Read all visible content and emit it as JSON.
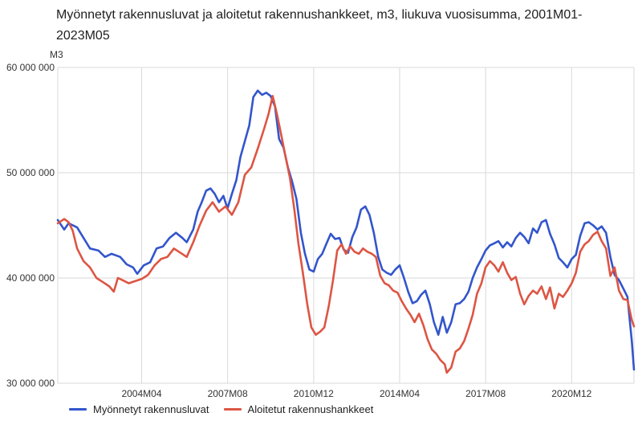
{
  "chart_data": {
    "type": "line",
    "title": "Myönnetyt rakennusluvat ja aloitetut rakennushankkeet, m3, liukuva vuosisumma, 2001M01-2023M05",
    "ylabel": "M3",
    "xlabel": "",
    "ylim": [
      30000000,
      60000000
    ],
    "yticks": [
      30000000,
      40000000,
      50000000,
      60000000
    ],
    "ytick_labels": [
      "30 000 000",
      "40 000 000",
      "50 000 000",
      "60 000 000"
    ],
    "xlim": [
      2001.0,
      2023.333
    ],
    "xticks": [
      2001.0,
      2004.25,
      2007.583,
      2010.917,
      2014.25,
      2017.583,
      2020.917
    ],
    "xtick_labels": [
      "",
      "2004M04",
      "2007M08",
      "2010M12",
      "2014M04",
      "2017M08",
      "2020M12"
    ],
    "grid": true,
    "legend_position": "bottom-left",
    "series": [
      {
        "name": "Myönnetyt rakennusluvat",
        "color": "#3355cc",
        "points": [
          [
            2001.0,
            45.5
          ],
          [
            2001.25,
            44.6
          ],
          [
            2001.42,
            45.2
          ],
          [
            2001.75,
            44.8
          ],
          [
            2002.0,
            43.8
          ],
          [
            2002.25,
            42.8
          ],
          [
            2002.58,
            42.6
          ],
          [
            2002.83,
            42.0
          ],
          [
            2003.08,
            42.3
          ],
          [
            2003.42,
            42.0
          ],
          [
            2003.67,
            41.3
          ],
          [
            2003.92,
            41.0
          ],
          [
            2004.08,
            40.4
          ],
          [
            2004.33,
            41.2
          ],
          [
            2004.58,
            41.5
          ],
          [
            2004.83,
            42.8
          ],
          [
            2005.08,
            43.0
          ],
          [
            2005.33,
            43.8
          ],
          [
            2005.58,
            44.3
          ],
          [
            2005.83,
            43.8
          ],
          [
            2006.0,
            43.4
          ],
          [
            2006.25,
            44.6
          ],
          [
            2006.42,
            46.3
          ],
          [
            2006.58,
            47.2
          ],
          [
            2006.75,
            48.3
          ],
          [
            2006.92,
            48.5
          ],
          [
            2007.08,
            48.0
          ],
          [
            2007.25,
            47.2
          ],
          [
            2007.42,
            47.8
          ],
          [
            2007.58,
            46.6
          ],
          [
            2007.75,
            48.0
          ],
          [
            2007.92,
            49.3
          ],
          [
            2008.08,
            51.5
          ],
          [
            2008.25,
            53.0
          ],
          [
            2008.42,
            54.5
          ],
          [
            2008.58,
            57.2
          ],
          [
            2008.75,
            57.8
          ],
          [
            2008.92,
            57.4
          ],
          [
            2009.08,
            57.6
          ],
          [
            2009.25,
            57.3
          ],
          [
            2009.42,
            56.3
          ],
          [
            2009.58,
            53.2
          ],
          [
            2009.75,
            52.4
          ],
          [
            2009.92,
            50.5
          ],
          [
            2010.08,
            49.2
          ],
          [
            2010.25,
            47.5
          ],
          [
            2010.42,
            44.3
          ],
          [
            2010.58,
            42.3
          ],
          [
            2010.75,
            40.8
          ],
          [
            2010.92,
            40.6
          ],
          [
            2011.08,
            41.8
          ],
          [
            2011.25,
            42.3
          ],
          [
            2011.42,
            43.3
          ],
          [
            2011.58,
            44.2
          ],
          [
            2011.75,
            43.7
          ],
          [
            2011.92,
            43.8
          ],
          [
            2012.08,
            42.7
          ],
          [
            2012.25,
            42.4
          ],
          [
            2012.42,
            43.9
          ],
          [
            2012.58,
            44.8
          ],
          [
            2012.75,
            46.5
          ],
          [
            2012.92,
            46.8
          ],
          [
            2013.08,
            46.0
          ],
          [
            2013.25,
            44.3
          ],
          [
            2013.42,
            42.0
          ],
          [
            2013.58,
            40.8
          ],
          [
            2013.75,
            40.5
          ],
          [
            2013.92,
            40.3
          ],
          [
            2014.08,
            40.8
          ],
          [
            2014.25,
            41.2
          ],
          [
            2014.42,
            40.0
          ],
          [
            2014.58,
            38.7
          ],
          [
            2014.75,
            37.6
          ],
          [
            2014.92,
            37.8
          ],
          [
            2015.08,
            38.4
          ],
          [
            2015.25,
            38.8
          ],
          [
            2015.42,
            37.5
          ],
          [
            2015.58,
            35.8
          ],
          [
            2015.75,
            34.6
          ],
          [
            2015.92,
            36.3
          ],
          [
            2016.08,
            34.8
          ],
          [
            2016.25,
            35.8
          ],
          [
            2016.42,
            37.5
          ],
          [
            2016.58,
            37.6
          ],
          [
            2016.75,
            38.0
          ],
          [
            2016.92,
            38.7
          ],
          [
            2017.08,
            40.0
          ],
          [
            2017.25,
            41.0
          ],
          [
            2017.42,
            41.8
          ],
          [
            2017.58,
            42.6
          ],
          [
            2017.75,
            43.1
          ],
          [
            2017.92,
            43.3
          ],
          [
            2018.08,
            43.5
          ],
          [
            2018.25,
            42.9
          ],
          [
            2018.42,
            43.4
          ],
          [
            2018.58,
            43.0
          ],
          [
            2018.75,
            43.8
          ],
          [
            2018.92,
            44.3
          ],
          [
            2019.08,
            43.9
          ],
          [
            2019.25,
            43.3
          ],
          [
            2019.42,
            44.7
          ],
          [
            2019.58,
            44.3
          ],
          [
            2019.75,
            45.3
          ],
          [
            2019.92,
            45.5
          ],
          [
            2020.08,
            44.2
          ],
          [
            2020.25,
            43.2
          ],
          [
            2020.42,
            41.9
          ],
          [
            2020.58,
            41.5
          ],
          [
            2020.75,
            41.0
          ],
          [
            2020.92,
            41.8
          ],
          [
            2021.08,
            42.2
          ],
          [
            2021.25,
            44.0
          ],
          [
            2021.42,
            45.2
          ],
          [
            2021.58,
            45.3
          ],
          [
            2021.75,
            45.0
          ],
          [
            2021.92,
            44.6
          ],
          [
            2022.08,
            44.9
          ],
          [
            2022.25,
            44.3
          ],
          [
            2022.42,
            42.0
          ],
          [
            2022.58,
            40.3
          ],
          [
            2022.75,
            39.8
          ],
          [
            2022.92,
            39.0
          ],
          [
            2023.08,
            38.2
          ],
          [
            2023.25,
            34.0
          ],
          [
            2023.333,
            31.3
          ]
        ]
      },
      {
        "name": "Aloitetut rakennushankkeet",
        "color": "#dd5544",
        "points": [
          [
            2001.0,
            45.2
          ],
          [
            2001.25,
            45.6
          ],
          [
            2001.42,
            45.3
          ],
          [
            2001.58,
            44.5
          ],
          [
            2001.75,
            42.8
          ],
          [
            2002.0,
            41.6
          ],
          [
            2002.25,
            41.0
          ],
          [
            2002.5,
            40.0
          ],
          [
            2002.75,
            39.6
          ],
          [
            2003.0,
            39.2
          ],
          [
            2003.17,
            38.7
          ],
          [
            2003.33,
            40.0
          ],
          [
            2003.5,
            39.8
          ],
          [
            2003.75,
            39.5
          ],
          [
            2004.0,
            39.7
          ],
          [
            2004.25,
            39.9
          ],
          [
            2004.5,
            40.3
          ],
          [
            2004.75,
            41.2
          ],
          [
            2005.0,
            41.8
          ],
          [
            2005.25,
            42.0
          ],
          [
            2005.5,
            42.8
          ],
          [
            2005.75,
            42.4
          ],
          [
            2006.0,
            42.0
          ],
          [
            2006.25,
            43.4
          ],
          [
            2006.5,
            45.0
          ],
          [
            2006.75,
            46.4
          ],
          [
            2007.0,
            47.2
          ],
          [
            2007.25,
            46.3
          ],
          [
            2007.5,
            46.8
          ],
          [
            2007.75,
            46.0
          ],
          [
            2008.0,
            47.2
          ],
          [
            2008.25,
            49.8
          ],
          [
            2008.5,
            50.5
          ],
          [
            2008.75,
            52.3
          ],
          [
            2009.0,
            54.2
          ],
          [
            2009.17,
            55.6
          ],
          [
            2009.33,
            57.3
          ],
          [
            2009.5,
            55.5
          ],
          [
            2009.67,
            53.5
          ],
          [
            2009.83,
            51.5
          ],
          [
            2010.0,
            49.5
          ],
          [
            2010.17,
            46.5
          ],
          [
            2010.33,
            43.2
          ],
          [
            2010.5,
            40.5
          ],
          [
            2010.67,
            37.5
          ],
          [
            2010.83,
            35.3
          ],
          [
            2011.0,
            34.6
          ],
          [
            2011.17,
            34.9
          ],
          [
            2011.33,
            35.3
          ],
          [
            2011.5,
            37.3
          ],
          [
            2011.67,
            39.8
          ],
          [
            2011.83,
            42.6
          ],
          [
            2012.0,
            43.2
          ],
          [
            2012.17,
            42.3
          ],
          [
            2012.33,
            43.0
          ],
          [
            2012.5,
            42.5
          ],
          [
            2012.67,
            42.3
          ],
          [
            2012.83,
            42.8
          ],
          [
            2013.0,
            42.5
          ],
          [
            2013.17,
            42.3
          ],
          [
            2013.33,
            42.0
          ],
          [
            2013.5,
            40.2
          ],
          [
            2013.67,
            39.5
          ],
          [
            2013.83,
            39.3
          ],
          [
            2014.0,
            38.8
          ],
          [
            2014.17,
            38.6
          ],
          [
            2014.33,
            37.8
          ],
          [
            2014.5,
            37.1
          ],
          [
            2014.67,
            36.5
          ],
          [
            2014.83,
            35.8
          ],
          [
            2015.0,
            36.6
          ],
          [
            2015.17,
            35.5
          ],
          [
            2015.33,
            34.2
          ],
          [
            2015.5,
            33.2
          ],
          [
            2015.67,
            32.8
          ],
          [
            2015.83,
            32.2
          ],
          [
            2016.0,
            31.8
          ],
          [
            2016.08,
            31.0
          ],
          [
            2016.25,
            31.5
          ],
          [
            2016.42,
            33.0
          ],
          [
            2016.58,
            33.3
          ],
          [
            2016.75,
            34.0
          ],
          [
            2016.92,
            35.2
          ],
          [
            2017.08,
            36.5
          ],
          [
            2017.25,
            38.5
          ],
          [
            2017.42,
            39.5
          ],
          [
            2017.58,
            41.0
          ],
          [
            2017.75,
            41.6
          ],
          [
            2017.92,
            41.2
          ],
          [
            2018.08,
            40.6
          ],
          [
            2018.25,
            41.5
          ],
          [
            2018.42,
            40.5
          ],
          [
            2018.58,
            39.8
          ],
          [
            2018.75,
            40.1
          ],
          [
            2018.92,
            38.5
          ],
          [
            2019.08,
            37.5
          ],
          [
            2019.25,
            38.3
          ],
          [
            2019.42,
            38.8
          ],
          [
            2019.58,
            38.5
          ],
          [
            2019.75,
            39.2
          ],
          [
            2019.92,
            38.0
          ],
          [
            2020.08,
            39.1
          ],
          [
            2020.25,
            37.1
          ],
          [
            2020.42,
            38.5
          ],
          [
            2020.58,
            38.2
          ],
          [
            2020.75,
            38.8
          ],
          [
            2020.92,
            39.5
          ],
          [
            2021.08,
            40.5
          ],
          [
            2021.25,
            42.5
          ],
          [
            2021.42,
            43.2
          ],
          [
            2021.58,
            43.5
          ],
          [
            2021.75,
            44.1
          ],
          [
            2021.92,
            44.4
          ],
          [
            2022.08,
            43.5
          ],
          [
            2022.25,
            42.8
          ],
          [
            2022.42,
            40.2
          ],
          [
            2022.58,
            41.0
          ],
          [
            2022.75,
            38.8
          ],
          [
            2022.92,
            38.0
          ],
          [
            2023.08,
            37.9
          ],
          [
            2023.25,
            36.0
          ],
          [
            2023.333,
            35.4
          ]
        ]
      }
    ]
  }
}
